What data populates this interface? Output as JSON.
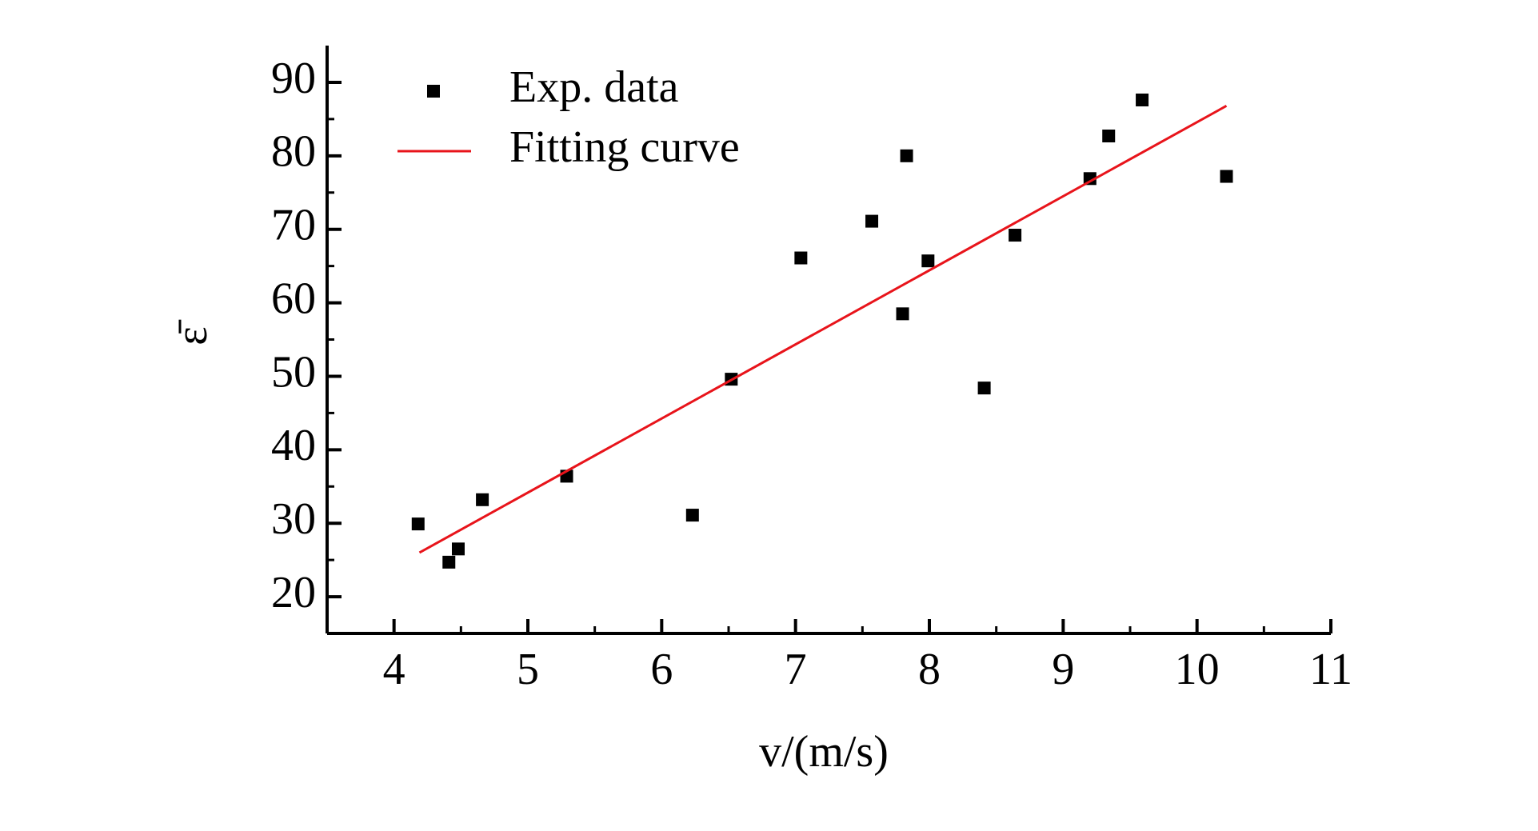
{
  "chart_data": {
    "type": "scatter",
    "x_label": "v/(m/s)",
    "y_label": "ε̄",
    "xlim": [
      3.5,
      11
    ],
    "ylim": [
      15,
      95
    ],
    "xticks": [
      4,
      5,
      6,
      7,
      8,
      9,
      10,
      11
    ],
    "yticks": [
      20,
      30,
      40,
      50,
      60,
      70,
      80,
      90
    ],
    "legend": "upper left",
    "series": [
      {
        "name": "Exp. data",
        "color": "#000000",
        "marker": "square",
        "x": [
          4.18,
          4.41,
          4.48,
          4.66,
          5.29,
          6.23,
          6.52,
          7.04,
          7.57,
          7.8,
          7.83,
          7.99,
          8.41,
          8.64,
          9.2,
          9.34,
          9.59,
          10.22
        ],
        "values": [
          29.9,
          24.7,
          26.5,
          33.2,
          36.4,
          31.1,
          49.6,
          66.1,
          71.1,
          58.5,
          80,
          65.7,
          48.4,
          69.2,
          76.9,
          82.7,
          87.6,
          77.2
        ]
      },
      {
        "name": "Fitting curve",
        "color": "#e8141b",
        "marker": "line",
        "x": [
          4.19,
          10.22
        ],
        "values": [
          26,
          86.8
        ]
      }
    ]
  }
}
